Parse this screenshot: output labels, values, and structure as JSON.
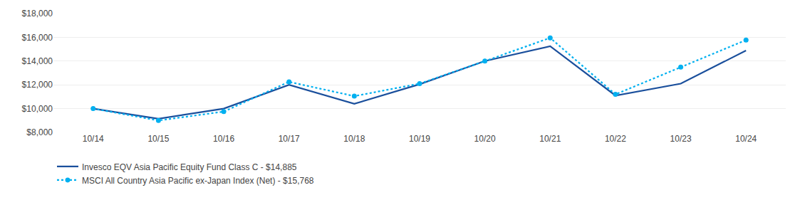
{
  "chart_data": {
    "type": "line",
    "categories": [
      "10/14",
      "10/15",
      "10/16",
      "10/17",
      "10/18",
      "10/19",
      "10/20",
      "10/21",
      "10/22",
      "10/23",
      "10/24"
    ],
    "series": [
      {
        "name": "Invesco EQV Asia Pacific Equity Fund Class C - $14,885",
        "color": "#1a4f9c",
        "line_style": "solid",
        "values": [
          10000,
          9150,
          10000,
          12000,
          10400,
          12050,
          14000,
          15250,
          11100,
          12100,
          14885
        ]
      },
      {
        "name": "MSCI All Country Asia Pacific ex-Japan Index (Net) - $15,768",
        "color": "#00b0f0",
        "line_style": "dotted",
        "marker": "circle",
        "values": [
          10000,
          9000,
          9750,
          12250,
          11050,
          12100,
          14000,
          15950,
          11200,
          13500,
          15768
        ]
      }
    ],
    "ylim": [
      8000,
      18000
    ],
    "yticks": [
      {
        "value": 8000,
        "label": "$8,000"
      },
      {
        "value": 10000,
        "label": "$10,000"
      },
      {
        "value": 12000,
        "label": "$12,000"
      },
      {
        "value": 14000,
        "label": "$14,000"
      },
      {
        "value": 16000,
        "label": "$16,000"
      },
      {
        "value": 18000,
        "label": "$18,000"
      }
    ],
    "grid": true,
    "legend": "bottom"
  }
}
